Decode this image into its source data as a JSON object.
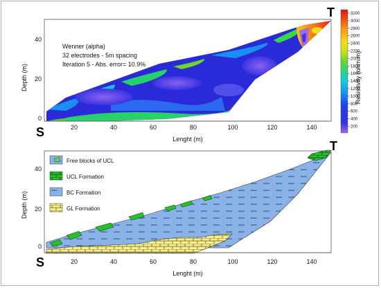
{
  "top_panel": {
    "annotation": {
      "method": "Wenner (alpha)",
      "electrodes": "32 electrodes - 5m spacing",
      "iteration": "Iteration 5 - Abs. error= 10.9%"
    },
    "xlabel": "Lenght (m)",
    "ylabel": "Depth (m)",
    "xticks": [
      "20",
      "40",
      "60",
      "80",
      "100",
      "120",
      "140"
    ],
    "yticks": [
      "0",
      "20",
      "40"
    ],
    "corner_left": "S",
    "corner_right": "T",
    "colorbar": {
      "label": "Resistivity (ohm.m)",
      "ticks": [
        "3200",
        "3000",
        "2800",
        "2600",
        "2400",
        "2200",
        "2000",
        "1800",
        "1600",
        "1400",
        "1200",
        "1000",
        "800",
        "600",
        "400",
        "200"
      ]
    }
  },
  "bottom_panel": {
    "xlabel": "Lenght (m)",
    "ylabel": "Depth (m)",
    "xticks": [
      "20",
      "40",
      "60",
      "80",
      "100",
      "120",
      "140"
    ],
    "yticks": [
      "0",
      "20",
      "40"
    ],
    "corner_left": "S",
    "corner_right": "T",
    "legend": [
      {
        "label": "Free blocks of UCL",
        "color": "#63d24a"
      },
      {
        "label": "UCL Formation",
        "color": "#22c425"
      },
      {
        "label": "BC Formation",
        "color": "#8ab2e6"
      },
      {
        "label": "GL Formation",
        "color": "#f7ee8c"
      }
    ]
  },
  "colors": {
    "bc": "#8ab2e6",
    "ucl": "#22c425",
    "gl": "#f7ee8c",
    "resistivity_low": "#2a2ad8",
    "resistivity_high": "#e02010"
  }
}
